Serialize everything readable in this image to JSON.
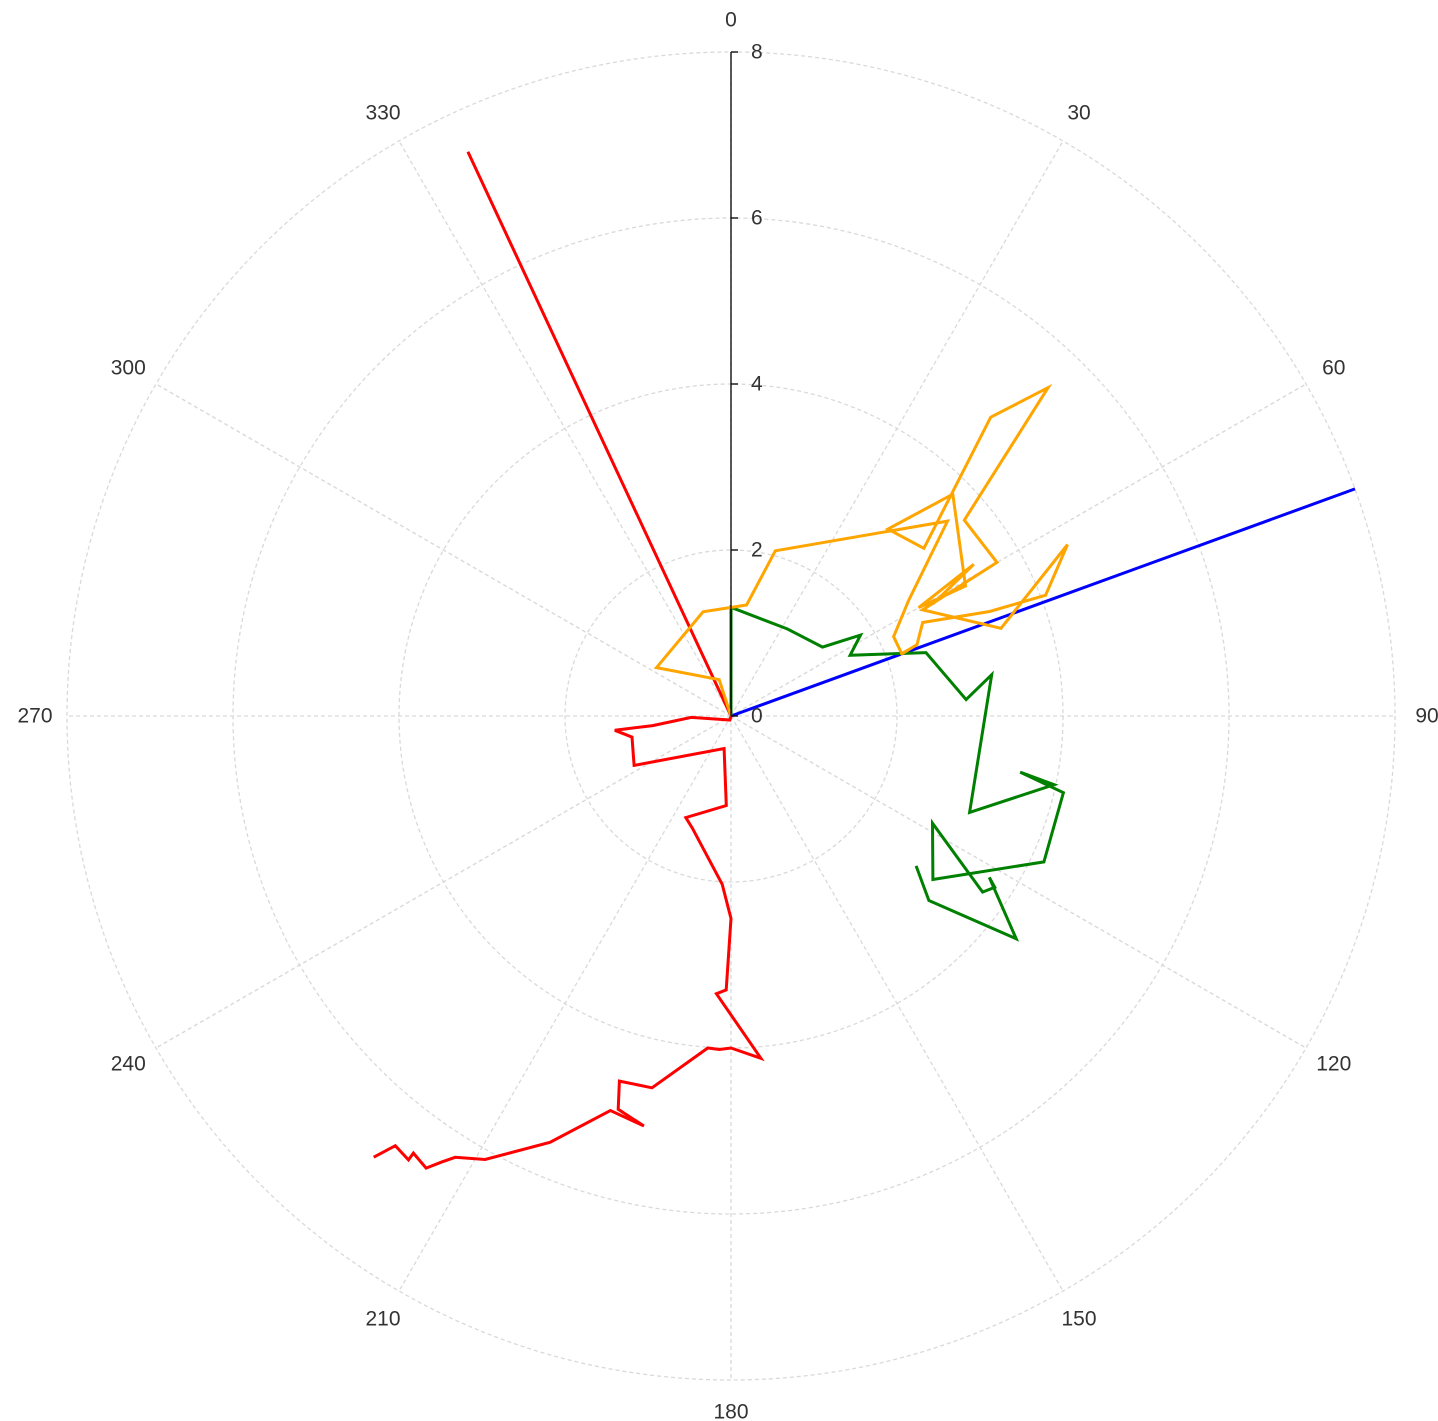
{
  "chart_data": {
    "type": "line",
    "coordinate_system": "polar",
    "angle_unit": "degrees",
    "angle_direction": "clockwise",
    "angle_zero": "top",
    "angular_ticks": [
      0,
      30,
      60,
      90,
      120,
      150,
      180,
      210,
      240,
      270,
      300,
      330
    ],
    "radial_ticks": [
      0,
      2,
      4,
      6,
      8
    ],
    "rlim": [
      0,
      8
    ],
    "grid": true,
    "legend": "none",
    "series": [
      {
        "color": "#ff0000",
        "points": [
          [
            0,
            0
          ],
          [
            335,
            7.5
          ]
        ]
      },
      {
        "color": "#0000ff",
        "points": [
          [
            0,
            0
          ],
          [
            70,
            8.0
          ]
        ]
      },
      {
        "color": "#ff0000",
        "points": [
          [
            0,
            0
          ],
          [
            195,
            0.05
          ],
          [
            268,
            0.48
          ],
          [
            263,
            0.95
          ],
          [
            263,
            1.41
          ],
          [
            258,
            1.22
          ],
          [
            243,
            1.31
          ],
          [
            192,
            0.4
          ],
          [
            183,
            1.08
          ],
          [
            204,
            1.34
          ],
          [
            199,
            1.43
          ],
          [
            183,
            2.03
          ],
          [
            180,
            2.44
          ],
          [
            181,
            3.3
          ],
          [
            183,
            3.35
          ],
          [
            175,
            4.14
          ],
          [
            180,
            4.0
          ],
          [
            182,
            4.02
          ],
          [
            184,
            4.01
          ],
          [
            192,
            4.58
          ],
          [
            197,
            4.6
          ],
          [
            196,
            4.93
          ],
          [
            192,
            5.05
          ],
          [
            197,
            4.97
          ],
          [
            203,
            5.58
          ],
          [
            209,
            6.11
          ],
          [
            212,
            6.27
          ],
          [
            213,
            6.41
          ],
          [
            214,
            6.57
          ],
          [
            216,
            6.51
          ],
          [
            216,
            6.61
          ],
          [
            218,
            6.57
          ],
          [
            219,
            6.84
          ]
        ]
      },
      {
        "color": "#008000",
        "points": [
          [
            0,
            0
          ],
          [
            0,
            1.31
          ],
          [
            33,
            1.25
          ],
          [
            53,
            1.38
          ],
          [
            58,
            1.84
          ],
          [
            63,
            1.61
          ],
          [
            72,
            2.47
          ],
          [
            86,
            2.84
          ],
          [
            81,
            3.18
          ],
          [
            112,
            3.1
          ],
          [
            102,
            3.98
          ],
          [
            101,
            3.55
          ],
          [
            103,
            4.11
          ],
          [
            115,
            4.16
          ],
          [
            129,
            3.13
          ],
          [
            118,
            2.75
          ],
          [
            125,
            3.7
          ],
          [
            123,
            3.79
          ],
          [
            122,
            3.67
          ],
          [
            128,
            4.36
          ],
          [
            133,
            3.26
          ],
          [
            129,
            2.87
          ]
        ]
      },
      {
        "color": "#ffa500",
        "points": [
          [
            0,
            0
          ],
          [
            342,
            0.46
          ],
          [
            303,
            1.07
          ],
          [
            345,
            1.3
          ],
          [
            8,
            1.35
          ],
          [
            15,
            2.06
          ],
          [
            48,
            3.51
          ],
          [
            57,
            2.55
          ],
          [
            64,
            2.18
          ],
          [
            70,
            2.19
          ],
          [
            69,
            2.4
          ],
          [
            64,
            2.57
          ],
          [
            68,
            3.36
          ],
          [
            69,
            4.06
          ],
          [
            63,
            4.55
          ],
          [
            72,
            3.42
          ],
          [
            61,
            2.64
          ],
          [
            60,
            3.7
          ],
          [
            50,
            3.67
          ],
          [
            44,
            5.5
          ],
          [
            41,
            4.77
          ],
          [
            49,
            3.08
          ],
          [
            40,
            2.94
          ],
          [
            45,
            3.78
          ],
          [
            61,
            3.23
          ],
          [
            60,
            2.61
          ],
          [
            58,
            3.45
          ],
          [
            61,
            2.78
          ]
        ]
      }
    ]
  }
}
